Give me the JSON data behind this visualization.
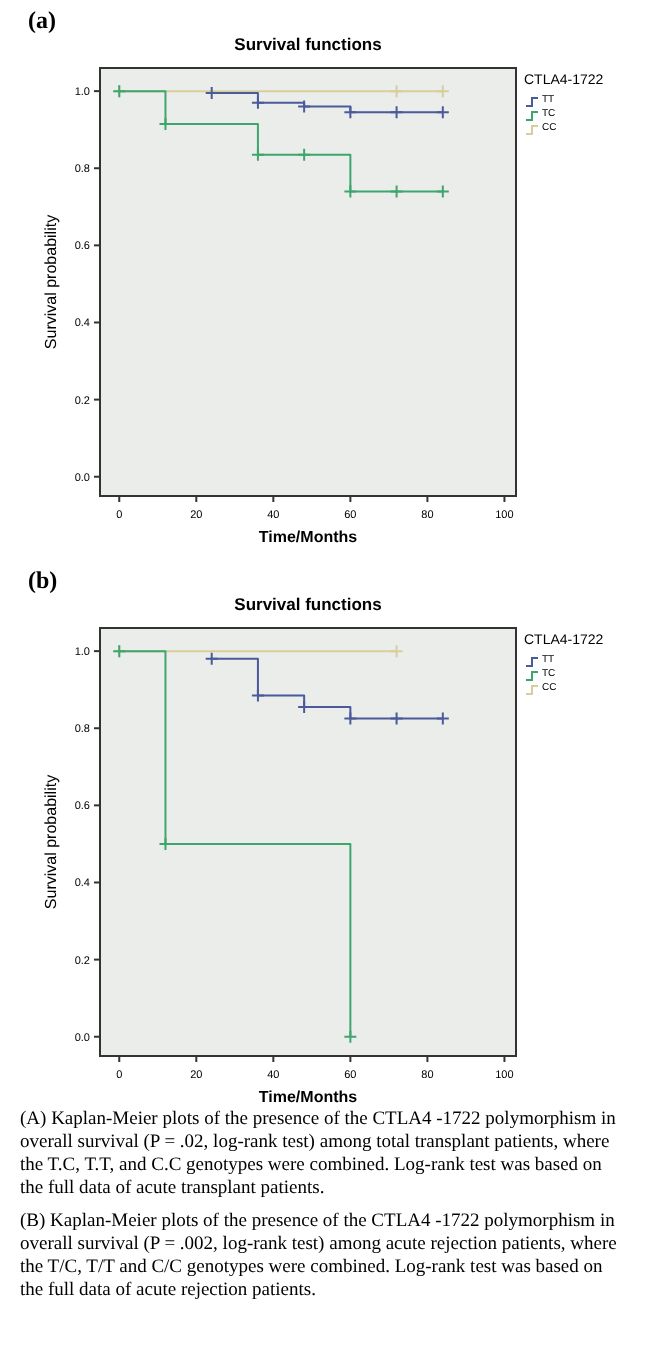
{
  "chart_data": [
    {
      "type": "step",
      "title": "Survival functions",
      "xlabel": "Time/Months",
      "ylabel": "Survival probability",
      "legend_title": "CTLA4-1722",
      "legend": "right",
      "marker": "cross",
      "grid": false,
      "annotations": [
        "(a)"
      ],
      "xlim": [
        -5,
        103
      ],
      "ylim": [
        -0.05,
        1.06
      ],
      "xticks": [
        0,
        20,
        40,
        60,
        80,
        100
      ],
      "yticks": [
        {
          "value": 0,
          "label": "0.0"
        },
        {
          "value": 0.2,
          "label": "0.2"
        },
        {
          "value": 0.4,
          "label": "0.4"
        },
        {
          "value": 0.6,
          "label": "0.6"
        },
        {
          "value": 0.8,
          "label": "0.8"
        },
        {
          "value": 1,
          "label": "1.0"
        }
      ],
      "series": [
        {
          "name": "TT",
          "color": "#4a5a9a",
          "x": [
            24,
            36,
            48,
            60,
            72,
            84
          ],
          "values": [
            0.995,
            0.97,
            0.96,
            0.945,
            0.945,
            0.945
          ]
        },
        {
          "name": "TC",
          "color": "#3fa56e",
          "x": [
            0,
            12,
            36,
            48,
            60,
            72,
            84
          ],
          "values": [
            1,
            0.915,
            0.835,
            0.835,
            0.74,
            0.74,
            0.74
          ]
        },
        {
          "name": "CC",
          "color": "#d6cf9c",
          "x": [
            0,
            72,
            84
          ],
          "values": [
            1,
            1,
            1
          ]
        }
      ]
    },
    {
      "type": "step",
      "title": "Survival functions",
      "xlabel": "Time/Months",
      "ylabel": "Survival probability",
      "legend_title": "CTLA4-1722",
      "legend": "right",
      "marker": "cross",
      "grid": false,
      "annotations": [
        "(b)",
        "(A) Kaplan-Meier plots of the presence of the CTLA4 -1722 polymorphism in overall survival (P = .02, log-rank test) among total transplant patients, where the T.C, T.T, and C.C genotypes were combined. Log-rank test was based on the full data of acute transplant patients.",
        "(B) Kaplan-Meier plots of the presence of the CTLA4 -1722 polymorphism in overall survival (P = .002, log-rank test) among acute rejection patients, where the T/C, T/T and C/C genotypes were combined. Log-rank test was based on the full data of acute rejection patients."
      ],
      "xlim": [
        -5,
        103
      ],
      "ylim": [
        -0.05,
        1.06
      ],
      "xticks": [
        0,
        20,
        40,
        60,
        80,
        100
      ],
      "yticks": [
        {
          "value": 0,
          "label": "0.0"
        },
        {
          "value": 0.2,
          "label": "0.2"
        },
        {
          "value": 0.4,
          "label": "0.4"
        },
        {
          "value": 0.6,
          "label": "0.6"
        },
        {
          "value": 0.8,
          "label": "0.8"
        },
        {
          "value": 1,
          "label": "1.0"
        }
      ],
      "series": [
        {
          "name": "TT",
          "color": "#4a5a9a",
          "x": [
            24,
            36,
            48,
            60,
            72,
            84
          ],
          "values": [
            0.98,
            0.885,
            0.855,
            0.825,
            0.825,
            0.825
          ]
        },
        {
          "name": "TC",
          "color": "#3fa56e",
          "x": [
            0,
            12,
            60
          ],
          "values": [
            1,
            0.5,
            0
          ]
        },
        {
          "name": "CC",
          "color": "#d6cf9c",
          "x": [
            0,
            72
          ],
          "values": [
            1,
            1
          ]
        }
      ]
    }
  ]
}
